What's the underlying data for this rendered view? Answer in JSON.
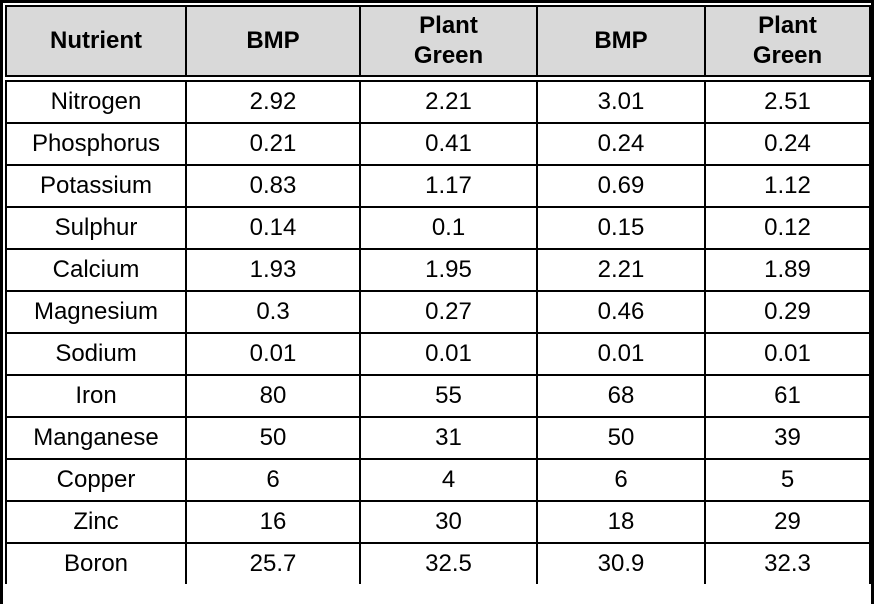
{
  "colors": {
    "header_bg": "#d9d9d9",
    "border": "#000000",
    "text": "#000000",
    "row_bg": "#ffffff"
  },
  "header": {
    "labels": [
      "Nutrient",
      "BMP",
      "Plant\nGreen",
      "BMP",
      "Plant\nGreen"
    ]
  },
  "rows": [
    {
      "cells": [
        "Nitrogen",
        "2.92",
        "2.21",
        "3.01",
        "2.51"
      ]
    },
    {
      "cells": [
        "Phosphorus",
        "0.21",
        "0.41",
        "0.24",
        "0.24"
      ]
    },
    {
      "cells": [
        "Potassium",
        "0.83",
        "1.17",
        "0.69",
        "1.12"
      ]
    },
    {
      "cells": [
        "Sulphur",
        "0.14",
        "0.1",
        "0.15",
        "0.12"
      ]
    },
    {
      "cells": [
        "Calcium",
        "1.93",
        "1.95",
        "2.21",
        "1.89"
      ]
    },
    {
      "cells": [
        "Magnesium",
        "0.3",
        "0.27",
        "0.46",
        "0.29"
      ]
    },
    {
      "cells": [
        "Sodium",
        "0.01",
        "0.01",
        "0.01",
        "0.01"
      ]
    },
    {
      "cells": [
        "Iron",
        "80",
        "55",
        "68",
        "61"
      ]
    },
    {
      "cells": [
        "Manganese",
        "50",
        "31",
        "50",
        "39"
      ]
    },
    {
      "cells": [
        "Copper",
        "6",
        "4",
        "6",
        "5"
      ]
    },
    {
      "cells": [
        "Zinc",
        "16",
        "30",
        "18",
        "29"
      ]
    },
    {
      "cells": [
        "Boron",
        "25.7",
        "32.5",
        "30.9",
        "32.3"
      ]
    }
  ],
  "chart_data": {
    "type": "table",
    "columns": [
      "Nutrient",
      "BMP",
      "Plant Green",
      "BMP",
      "Plant Green"
    ],
    "rows": [
      [
        "Nitrogen",
        2.92,
        2.21,
        3.01,
        2.51
      ],
      [
        "Phosphorus",
        0.21,
        0.41,
        0.24,
        0.24
      ],
      [
        "Potassium",
        0.83,
        1.17,
        0.69,
        1.12
      ],
      [
        "Sulphur",
        0.14,
        0.1,
        0.15,
        0.12
      ],
      [
        "Calcium",
        1.93,
        1.95,
        2.21,
        1.89
      ],
      [
        "Magnesium",
        0.3,
        0.27,
        0.46,
        0.29
      ],
      [
        "Sodium",
        0.01,
        0.01,
        0.01,
        0.01
      ],
      [
        "Iron",
        80,
        55,
        68,
        61
      ],
      [
        "Manganese",
        50,
        31,
        50,
        39
      ],
      [
        "Copper",
        6,
        4,
        6,
        5
      ],
      [
        "Zinc",
        16,
        30,
        18,
        29
      ],
      [
        "Boron",
        25.7,
        32.5,
        30.9,
        32.3
      ]
    ]
  }
}
